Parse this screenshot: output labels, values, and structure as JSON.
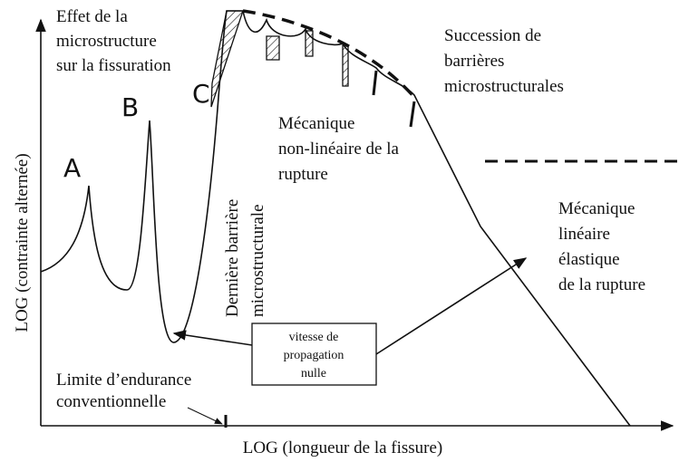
{
  "effect_label": [
    "Effet de la",
    "microstructure",
    "sur la fissuration"
  ],
  "curve_labels": [
    "A",
    "B",
    "C"
  ],
  "succession_label": [
    "Succession de",
    "barrières",
    "microstructurales"
  ],
  "nonlinear_label": [
    "Mécanique",
    "non-linéaire de la",
    "rupture"
  ],
  "last_barrier_label": [
    "Dernière barrière",
    "microstructurale"
  ],
  "linear_label": [
    "Mécanique",
    "linéaire",
    "élastique",
    "de la rupture"
  ],
  "box_label": [
    "vitesse de",
    "propagation",
    "nulle"
  ],
  "endurance_label": [
    "Limite d’endurance",
    "conventionnelle"
  ],
  "y_axis_label": "LOG (contrainte alternée)",
  "x_axis_label": "LOG (longueur de la fissure)"
}
